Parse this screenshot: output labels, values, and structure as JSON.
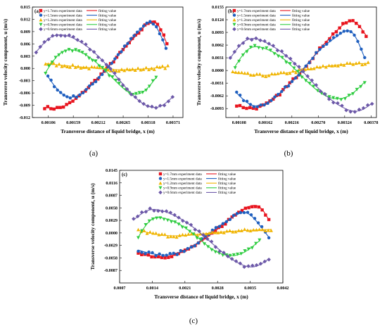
{
  "captions": [
    "(a)",
    "(b)",
    "(c)"
  ],
  "legend_labels": {
    "exp": [
      "y=1.7mm experiment data",
      "y=1.5mm experiment data",
      "y=1.2mm experiment data",
      "y=0.9mm experiment data",
      "y=0.6mm experiment data"
    ],
    "fit": [
      "fitting value",
      "fitting value",
      "fitting value",
      "fitting value",
      "fitting value"
    ]
  },
  "series_style": [
    {
      "color": "#e8141e",
      "marker": "square"
    },
    {
      "color": "#1f5fbf",
      "marker": "circle"
    },
    {
      "color": "#f0b400",
      "marker": "triangle-up"
    },
    {
      "color": "#2ecc40",
      "marker": "triangle-down"
    },
    {
      "color": "#6c58a8",
      "marker": "diamond"
    }
  ],
  "chart_data": [
    {
      "type": "scatter",
      "panel_label": "(a)",
      "xlabel": "Transverse distance of liquid bridge, x (m)",
      "ylabel": "Transverse velocity component, u (m/s)",
      "xlim": [
        0.00072,
        0.00392
      ],
      "ylim": [
        -0.012,
        0.015
      ],
      "xticks": [
        "0.00106",
        "0.00159",
        "0.00212",
        "0.00265",
        "0.00318",
        "0.00371"
      ],
      "yticks": [
        "-0.012",
        "-0.009",
        "-0.006",
        "-0.003",
        "0.000",
        "0.003",
        "0.006",
        "0.009",
        "0.012",
        "0.015"
      ],
      "series": [
        {
          "name": "y=1.7mm experiment data",
          "fit": {
            "x": [
              0.00098,
              0.0013,
              0.00165,
              0.002,
              0.00235,
              0.0027,
              0.00305,
              0.00335,
              0.00358
            ],
            "y": [
              -0.0095,
              -0.0096,
              -0.0074,
              -0.0036,
              0.0006,
              0.0052,
              0.0096,
              0.0112,
              0.006
            ]
          },
          "n_points": 40
        },
        {
          "name": "y=1.5mm experiment data",
          "fit": {
            "x": [
              0.00105,
              0.00135,
              0.00165,
              0.002,
              0.00235,
              0.0027,
              0.003,
              0.0033,
              0.00356
            ],
            "y": [
              -0.002,
              -0.0062,
              -0.0068,
              -0.0038,
              0.0006,
              0.0055,
              0.0094,
              0.0108,
              0.005
            ]
          },
          "n_points": 38
        },
        {
          "name": "y=1.2mm experiment data",
          "fit": {
            "x": [
              0.001,
              0.0015,
              0.002,
              0.0025,
              0.003,
              0.0036
            ],
            "y": [
              0.0012,
              0.0006,
              0.0001,
              -0.0003,
              -0.0002,
              0.0004
            ]
          },
          "n_points": 46
        },
        {
          "name": "y=0.9mm experiment data",
          "fit": {
            "x": [
              0.001,
              0.0013,
              0.0016,
              0.0019,
              0.0022,
              0.0025,
              0.0028,
              0.0031,
              0.00335
            ],
            "y": [
              -0.001,
              0.0036,
              0.0045,
              0.003,
              0.0002,
              -0.0032,
              -0.006,
              -0.0055,
              -0.0022
            ]
          },
          "n_points": 34
        },
        {
          "name": "y=0.6mm experiment data",
          "fit": {
            "x": [
              0.0008,
              0.0011,
              0.0015,
              0.0019,
              0.0023,
              0.0027,
              0.0031,
              0.00345,
              0.0037
            ],
            "y": [
              0.004,
              0.0075,
              0.0078,
              0.0052,
              0.0008,
              -0.0046,
              -0.0088,
              -0.0092,
              -0.007
            ]
          },
          "n_points": 34
        }
      ]
    },
    {
      "type": "scatter",
      "panel_label": "(b)",
      "xlabel": "Transverse distance of liquid bridge, x (m)",
      "ylabel": "Transverse velocity component, u (m/s)",
      "xlim": [
        0.00081,
        0.00389
      ],
      "ylim": [
        -0.0115,
        0.0155
      ],
      "xticks": [
        "0.00108",
        "0.00162",
        "0.00216",
        "0.00270",
        "0.00324",
        "0.00378"
      ],
      "yticks": [
        "-0.0093",
        "-0.0062",
        "-0.0031",
        "0.0000",
        "0.0031",
        "0.0062",
        "0.0093",
        "0.0124",
        "0.0155"
      ],
      "series": [
        {
          "name": "y=1.7mm experiment data",
          "fit": {
            "x": [
              0.00103,
              0.00135,
              0.0017,
              0.00205,
              0.0024,
              0.00275,
              0.0031,
              0.00345,
              0.00368
            ],
            "y": [
              -0.0085,
              -0.0092,
              -0.0078,
              -0.004,
              0.0005,
              0.0055,
              0.01,
              0.0118,
              0.0085
            ]
          },
          "n_points": 40
        },
        {
          "name": "y=1.5mm experiment data",
          "fit": {
            "x": [
              0.00103,
              0.00135,
              0.0017,
              0.00205,
              0.0024,
              0.00275,
              0.0031,
              0.0034,
              0.00365
            ],
            "y": [
              -0.0055,
              -0.0085,
              -0.0075,
              -0.004,
              0.0005,
              0.0052,
              0.0085,
              0.0092,
              0.003
            ]
          },
          "n_points": 38
        },
        {
          "name": "y=1.2mm experiment data",
          "fit": {
            "x": [
              0.00095,
              0.0015,
              0.00205,
              0.0026,
              0.00315,
              0.00372
            ],
            "y": [
              -0.0004,
              -0.0012,
              -0.0006,
              0.0005,
              0.0014,
              0.0017
            ]
          },
          "n_points": 46
        },
        {
          "name": "y=0.9mm experiment data",
          "fit": {
            "x": [
              0.001,
              0.00125,
              0.0016,
              0.00195,
              0.0023,
              0.00265,
              0.003,
              0.00335,
              0.00365
            ],
            "y": [
              0.001,
              0.005,
              0.0054,
              0.0032,
              -0.0006,
              -0.0046,
              -0.0068,
              -0.006,
              -0.0028
            ]
          },
          "n_points": 34
        },
        {
          "name": "y=0.6mm experiment data",
          "fit": {
            "x": [
              0.0009,
              0.0012,
              0.0016,
              0.002,
              0.0024,
              0.0028,
              0.0032,
              0.00355,
              0.0038
            ],
            "y": [
              0.003,
              0.0072,
              0.007,
              0.004,
              -0.0005,
              -0.0055,
              -0.009,
              -0.0098,
              -0.008
            ]
          },
          "n_points": 34
        }
      ]
    },
    {
      "type": "scatter",
      "panel_label": "(c)",
      "xlabel": "Transverse distance of liquid bridge, x (m)",
      "ylabel": "Transverse velocity component, u (m/s)",
      "xlim": [
        0.0007,
        0.0042
      ],
      "ylim": [
        -0.0116,
        0.0145
      ],
      "xticks": [
        "0.0007",
        "0.0014",
        "0.0021",
        "0.0028",
        "0.0035",
        "0.0042"
      ],
      "yticks": [
        "-0.0087",
        "-0.0058",
        "-0.0029",
        "0.0000",
        "0.0029",
        "0.0058",
        "0.0087",
        "0.0116",
        "0.0145"
      ],
      "series": [
        {
          "name": "y=1.7mm experiment data",
          "fit": {
            "x": [
              0.0011,
              0.0015,
              0.0019,
              0.0023,
              0.0027,
              0.0031,
              0.00345,
              0.00375,
              0.0039
            ],
            "y": [
              -0.0045,
              -0.0055,
              -0.005,
              -0.003,
              0.0,
              0.0035,
              0.006,
              0.0055,
              0.003
            ]
          },
          "n_points": 40
        },
        {
          "name": "y=1.5mm experiment data",
          "fit": {
            "x": [
              0.0011,
              0.0015,
              0.0019,
              0.0023,
              0.0027,
              0.0031,
              0.00345,
              0.0037,
              0.0039
            ],
            "y": [
              -0.004,
              -0.005,
              -0.0048,
              -0.0028,
              0.0005,
              0.0035,
              0.0045,
              0.0018,
              -0.001
            ]
          },
          "n_points": 38
        },
        {
          "name": "y=1.2mm experiment data",
          "fit": {
            "x": [
              0.0011,
              0.0017,
              0.0023,
              0.0029,
              0.0035,
              0.00395
            ],
            "y": [
              0.0006,
              -0.0006,
              -0.0004,
              0.0002,
              0.0006,
              0.0008
            ]
          },
          "n_points": 46
        },
        {
          "name": "y=0.9mm experiment data",
          "fit": {
            "x": [
              0.0011,
              0.00135,
              0.00165,
              0.00195,
              0.0023,
              0.00265,
              0.003,
              0.00335,
              0.0037
            ],
            "y": [
              -0.001,
              0.0028,
              0.0034,
              0.0022,
              -0.0004,
              -0.0035,
              -0.0052,
              -0.0046,
              -0.0018
            ]
          },
          "n_points": 34
        },
        {
          "name": "y=0.6mm experiment data",
          "fit": {
            "x": [
              0.001,
              0.0013,
              0.00165,
              0.00205,
              0.00245,
              0.00285,
              0.00325,
              0.0036,
              0.0039
            ],
            "y": [
              0.003,
              0.0052,
              0.005,
              0.003,
              -0.0002,
              -0.004,
              -0.007,
              -0.0078,
              -0.006
            ]
          },
          "n_points": 34
        }
      ]
    }
  ]
}
